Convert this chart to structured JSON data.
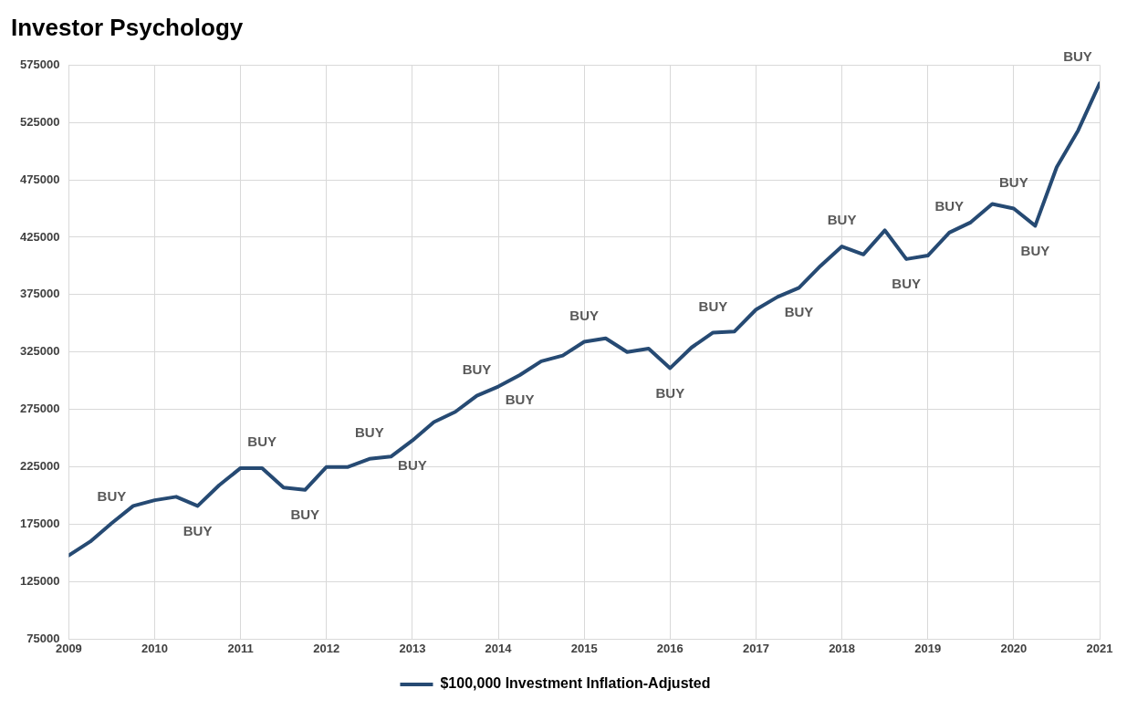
{
  "chart_data": {
    "type": "line",
    "title": "Investor Psychology",
    "x": [
      2009,
      2009.25,
      2009.5,
      2009.75,
      2010,
      2010.25,
      2010.5,
      2010.75,
      2011,
      2011.25,
      2011.5,
      2011.75,
      2012,
      2012.25,
      2012.5,
      2012.75,
      2013,
      2013.25,
      2013.5,
      2013.75,
      2014,
      2014.25,
      2014.5,
      2014.75,
      2015,
      2015.25,
      2015.5,
      2015.75,
      2016,
      2016.25,
      2016.5,
      2016.75,
      2017,
      2017.25,
      2017.5,
      2017.75,
      2018,
      2018.25,
      2018.5,
      2018.75,
      2019,
      2019.25,
      2019.5,
      2019.75,
      2020,
      2020.25,
      2020.5,
      2020.75,
      2021
    ],
    "series": [
      {
        "name": "$100,000 Investment Inflation-Adjusted",
        "color": "#264a73",
        "values": [
          148000,
          160000,
          176000,
          191000,
          196000,
          199000,
          191000,
          209000,
          224000,
          224000,
          207000,
          205000,
          225000,
          225000,
          232000,
          234000,
          248000,
          264000,
          273000,
          287000,
          295000,
          305000,
          317000,
          322000,
          334000,
          337000,
          325000,
          328000,
          311000,
          329000,
          342000,
          343000,
          362000,
          373000,
          381000,
          400000,
          417000,
          410000,
          431000,
          406000,
          409000,
          429000,
          438000,
          454000,
          450000,
          435000,
          486000,
          518000,
          559000
        ]
      }
    ],
    "xlim": [
      2009,
      2021
    ],
    "xticks": [
      2009,
      2010,
      2011,
      2012,
      2013,
      2014,
      2015,
      2016,
      2017,
      2018,
      2019,
      2020,
      2021
    ],
    "ylim": [
      75000,
      575000
    ],
    "yticks": [
      75000,
      125000,
      175000,
      225000,
      275000,
      325000,
      375000,
      425000,
      475000,
      525000,
      575000
    ],
    "grid": true,
    "legend": "bottom",
    "marker": "none",
    "line_style": "solid",
    "annotations": [
      {
        "text": "BUY",
        "x": 2009.5,
        "y": 176000
      },
      {
        "text": "BUY",
        "x": 2010.5,
        "y": 191000
      },
      {
        "text": "BUY",
        "x": 2011.25,
        "y": 224000
      },
      {
        "text": "BUY",
        "x": 2011.75,
        "y": 205000
      },
      {
        "text": "BUY",
        "x": 2012.5,
        "y": 232000
      },
      {
        "text": "BUY",
        "x": 2013.75,
        "y": 287000
      },
      {
        "text": "BUY",
        "x": 2013,
        "y": 248000
      },
      {
        "text": "BUY",
        "x": 2014.25,
        "y": 305000
      },
      {
        "text": "BUY",
        "x": 2015,
        "y": 334000
      },
      {
        "text": "BUY",
        "x": 2016,
        "y": 311000
      },
      {
        "text": "BUY",
        "x": 2016.5,
        "y": 342000
      },
      {
        "text": "BUY",
        "x": 2017.5,
        "y": 381000
      },
      {
        "text": "BUY",
        "x": 2018,
        "y": 417000
      },
      {
        "text": "BUY",
        "x": 2018.75,
        "y": 406000
      },
      {
        "text": "BUY",
        "x": 2019.25,
        "y": 429000
      },
      {
        "text": "BUY",
        "x": 2020.25,
        "y": 435000
      },
      {
        "text": "BUY",
        "x": 2020,
        "y": 450000
      },
      {
        "text": "BUY",
        "x": 2021,
        "y": 559000
      }
    ]
  }
}
